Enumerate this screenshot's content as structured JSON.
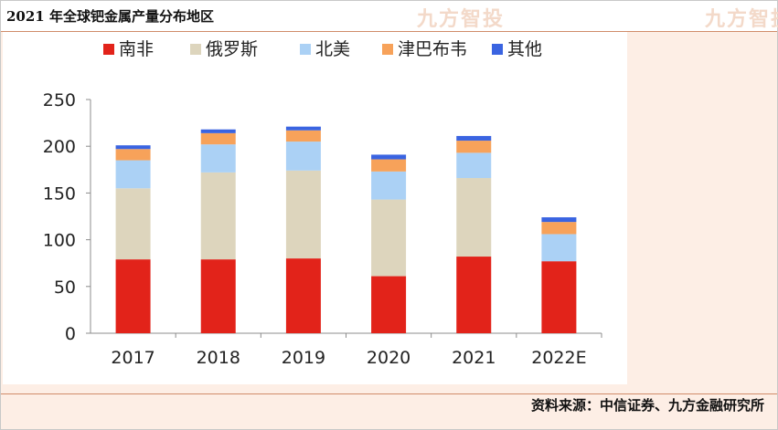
{
  "header": {
    "title": "2021 年全球钯金属产量分布地区",
    "watermark": "九方智投"
  },
  "footer": {
    "source": "资料来源：中信证券、九方金融研究所"
  },
  "chart_data": {
    "type": "bar",
    "stacked": true,
    "title": "",
    "xlabel": "",
    "ylabel": "",
    "categories": [
      "2017",
      "2018",
      "2019",
      "2020",
      "2021",
      "2022E"
    ],
    "ylim": [
      0,
      250
    ],
    "yticks": [
      0,
      50,
      100,
      150,
      200,
      250
    ],
    "grid": false,
    "legend_position": "top",
    "series": [
      {
        "name": "南非",
        "color": "#e2231a",
        "values": [
          79,
          79,
          80,
          61,
          82,
          77
        ]
      },
      {
        "name": "俄罗斯",
        "color": "#ddd5bd",
        "values": [
          76,
          93,
          94,
          82,
          84,
          0
        ]
      },
      {
        "name": "北美",
        "color": "#abd1f5",
        "values": [
          30,
          30,
          31,
          30,
          27,
          29
        ]
      },
      {
        "name": "津巴布韦",
        "color": "#f7a25a",
        "values": [
          12,
          12,
          12,
          13,
          13,
          13
        ]
      },
      {
        "name": "其他",
        "color": "#3a64e1",
        "values": [
          4,
          4,
          4,
          5,
          5,
          5
        ]
      }
    ]
  }
}
